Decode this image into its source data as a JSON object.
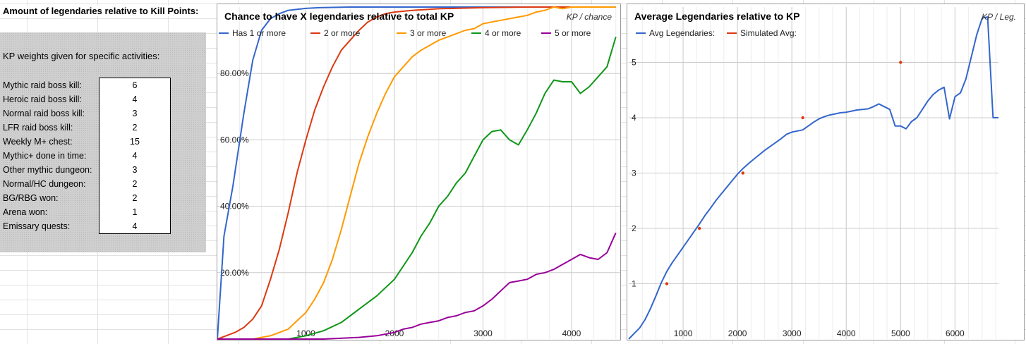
{
  "sheet": {
    "title": "Amount of legendaries relative to Kill Points:",
    "weights_label": "KP weights given for specific activities:",
    "weights": [
      {
        "label": "Mythic raid boss kill:",
        "value": "6"
      },
      {
        "label": "Heroic raid boss kill:",
        "value": "4"
      },
      {
        "label": "Normal raid boss kill:",
        "value": "3"
      },
      {
        "label": "LFR raid boss kill:",
        "value": "2"
      },
      {
        "label": "Weekly M+ chest:",
        "value": "15"
      },
      {
        "label": "Mythic+ done in time:",
        "value": "4"
      },
      {
        "label": "Other mythic dungeon:",
        "value": "3"
      },
      {
        "label": "Normal/HC dungeon:",
        "value": "2"
      },
      {
        "label": "BG/RBG won:",
        "value": "2"
      },
      {
        "label": "Arena won:",
        "value": "1"
      },
      {
        "label": "Emissary quests:",
        "value": "4"
      }
    ]
  },
  "chart_data": [
    {
      "type": "line",
      "title": "Chance to have X legendaries relative to total KP",
      "corner_label": "KP / chance",
      "xlabel": "",
      "ylabel": "",
      "xlim": [
        0,
        4550
      ],
      "ylim": [
        0,
        1
      ],
      "x_ticks": [
        1000,
        2000,
        3000,
        4000
      ],
      "x_tick_labels": [
        "1000",
        "2000",
        "3000",
        "4000"
      ],
      "y_ticks": [
        0.2,
        0.4,
        0.6,
        0.8
      ],
      "y_tick_labels": [
        "20.00%",
        "40.00%",
        "60.00%",
        "80.00%"
      ],
      "legend_position": "top",
      "series": [
        {
          "name": "Has 1 or more",
          "color": "#3366cc",
          "x": [
            0,
            75,
            175,
            300,
            400,
            500,
            600,
            700,
            800,
            900,
            1000,
            1150,
            1300,
            1500,
            2000,
            2500,
            3000,
            4500
          ],
          "y": [
            0,
            0.31,
            0.46,
            0.68,
            0.84,
            0.93,
            0.965,
            0.98,
            0.99,
            0.993,
            0.996,
            0.998,
            0.999,
            1,
            1,
            1,
            1,
            1
          ]
        },
        {
          "name": "2 or more",
          "color": "#dc3912",
          "x": [
            0,
            100,
            200,
            300,
            400,
            500,
            600,
            700,
            800,
            900,
            1000,
            1100,
            1200,
            1300,
            1400,
            1500,
            1600,
            1700,
            1800,
            1900,
            2000,
            2200,
            2500,
            3000,
            3500,
            4500
          ],
          "y": [
            0,
            0.01,
            0.02,
            0.035,
            0.06,
            0.1,
            0.18,
            0.27,
            0.38,
            0.5,
            0.6,
            0.69,
            0.76,
            0.82,
            0.87,
            0.9,
            0.93,
            0.955,
            0.97,
            0.98,
            0.985,
            0.99,
            0.995,
            0.998,
            1,
            1
          ]
        },
        {
          "name": "3 or more",
          "color": "#ff9900",
          "x": [
            0,
            400,
            600,
            800,
            1000,
            1100,
            1200,
            1300,
            1400,
            1500,
            1600,
            1700,
            1800,
            1900,
            2000,
            2100,
            2200,
            2300,
            2400,
            2500,
            2600,
            2700,
            2800,
            2900,
            3000,
            3100,
            3200,
            3300,
            3400,
            3500,
            3600,
            3700,
            3800,
            3900,
            4000,
            4500
          ],
          "y": [
            0,
            0,
            0.01,
            0.03,
            0.08,
            0.12,
            0.17,
            0.24,
            0.33,
            0.43,
            0.53,
            0.61,
            0.68,
            0.74,
            0.79,
            0.82,
            0.85,
            0.87,
            0.885,
            0.9,
            0.91,
            0.92,
            0.93,
            0.935,
            0.95,
            0.955,
            0.96,
            0.965,
            0.97,
            0.975,
            0.985,
            0.99,
            1,
            0.995,
            1,
            1
          ]
        },
        {
          "name": "4 or more",
          "color": "#109618",
          "x": [
            0,
            800,
            1000,
            1200,
            1400,
            1600,
            1800,
            2000,
            2100,
            2200,
            2300,
            2400,
            2500,
            2600,
            2700,
            2800,
            2900,
            3000,
            3100,
            3200,
            3300,
            3400,
            3500,
            3600,
            3700,
            3800,
            3900,
            4000,
            4100,
            4200,
            4300,
            4400,
            4500
          ],
          "y": [
            0,
            0,
            0.01,
            0.025,
            0.05,
            0.09,
            0.13,
            0.18,
            0.22,
            0.26,
            0.31,
            0.35,
            0.4,
            0.43,
            0.47,
            0.5,
            0.55,
            0.6,
            0.625,
            0.63,
            0.6,
            0.585,
            0.63,
            0.68,
            0.74,
            0.78,
            0.775,
            0.775,
            0.74,
            0.76,
            0.79,
            0.82,
            0.91
          ]
        },
        {
          "name": "5 or more",
          "color": "#990099",
          "x": [
            0,
            1200,
            1600,
            1800,
            2000,
            2100,
            2200,
            2300,
            2400,
            2500,
            2600,
            2700,
            2800,
            2900,
            3000,
            3100,
            3200,
            3300,
            3400,
            3500,
            3600,
            3700,
            3800,
            3900,
            4000,
            4100,
            4200,
            4300,
            4400,
            4500
          ],
          "y": [
            0,
            0,
            0.005,
            0.01,
            0.02,
            0.03,
            0.035,
            0.045,
            0.05,
            0.055,
            0.065,
            0.07,
            0.08,
            0.085,
            0.1,
            0.12,
            0.145,
            0.17,
            0.175,
            0.18,
            0.195,
            0.2,
            0.21,
            0.225,
            0.24,
            0.255,
            0.245,
            0.24,
            0.26,
            0.32
          ]
        }
      ]
    },
    {
      "type": "line",
      "title": "Average Legendaries relative to KP",
      "corner_label": "KP / Leg.",
      "xlabel": "",
      "ylabel": "",
      "xlim": [
        0,
        6800
      ],
      "ylim": [
        0,
        6
      ],
      "x_ticks": [
        1000,
        2000,
        3000,
        4000,
        5000,
        6000
      ],
      "x_tick_labels": [
        "1000",
        "2000",
        "3000",
        "4000",
        "5000",
        "6000"
      ],
      "y_ticks": [
        1,
        2,
        3,
        4,
        5
      ],
      "y_tick_labels": [
        "1",
        "2",
        "3",
        "4",
        "5"
      ],
      "legend_position": "top",
      "series": [
        {
          "name": "Avg Legendaries:",
          "color": "#3366cc",
          "style": "line",
          "x": [
            0,
            100,
            200,
            300,
            400,
            500,
            600,
            700,
            800,
            900,
            1000,
            1100,
            1200,
            1300,
            1400,
            1500,
            1600,
            1700,
            1800,
            1900,
            2000,
            2100,
            2200,
            2300,
            2400,
            2500,
            2600,
            2700,
            2800,
            2900,
            3000,
            3100,
            3200,
            3300,
            3400,
            3500,
            3600,
            3700,
            3800,
            3900,
            4000,
            4100,
            4200,
            4300,
            4400,
            4500,
            4600,
            4700,
            4800,
            4900,
            5000,
            5100,
            5200,
            5300,
            5400,
            5500,
            5600,
            5700,
            5800,
            5900,
            6000,
            6100,
            6200,
            6300,
            6400,
            6500,
            6600,
            6700,
            6800
          ],
          "y": [
            0,
            0.1,
            0.2,
            0.35,
            0.55,
            0.78,
            1.02,
            1.22,
            1.38,
            1.52,
            1.66,
            1.8,
            1.94,
            2.08,
            2.23,
            2.36,
            2.5,
            2.62,
            2.74,
            2.86,
            2.98,
            3.08,
            3.17,
            3.25,
            3.33,
            3.41,
            3.48,
            3.55,
            3.62,
            3.7,
            3.74,
            3.76,
            3.78,
            3.85,
            3.92,
            3.98,
            4.02,
            4.05,
            4.07,
            4.09,
            4.1,
            4.12,
            4.14,
            4.15,
            4.16,
            4.2,
            4.25,
            4.2,
            4.15,
            3.85,
            3.85,
            3.8,
            3.93,
            4.0,
            4.15,
            4.3,
            4.42,
            4.5,
            4.55,
            3.98,
            4.38,
            4.45,
            4.7,
            5.1,
            5.5,
            5.8,
            5.82,
            4.0,
            4.0
          ]
        },
        {
          "name": "Simulated Avg:",
          "color": "#dc3912",
          "style": "markers",
          "x": [
            700,
            1300,
            2100,
            3200,
            5000
          ],
          "y": [
            1.0,
            2.0,
            3.0,
            4.0,
            5.0
          ]
        }
      ]
    }
  ]
}
